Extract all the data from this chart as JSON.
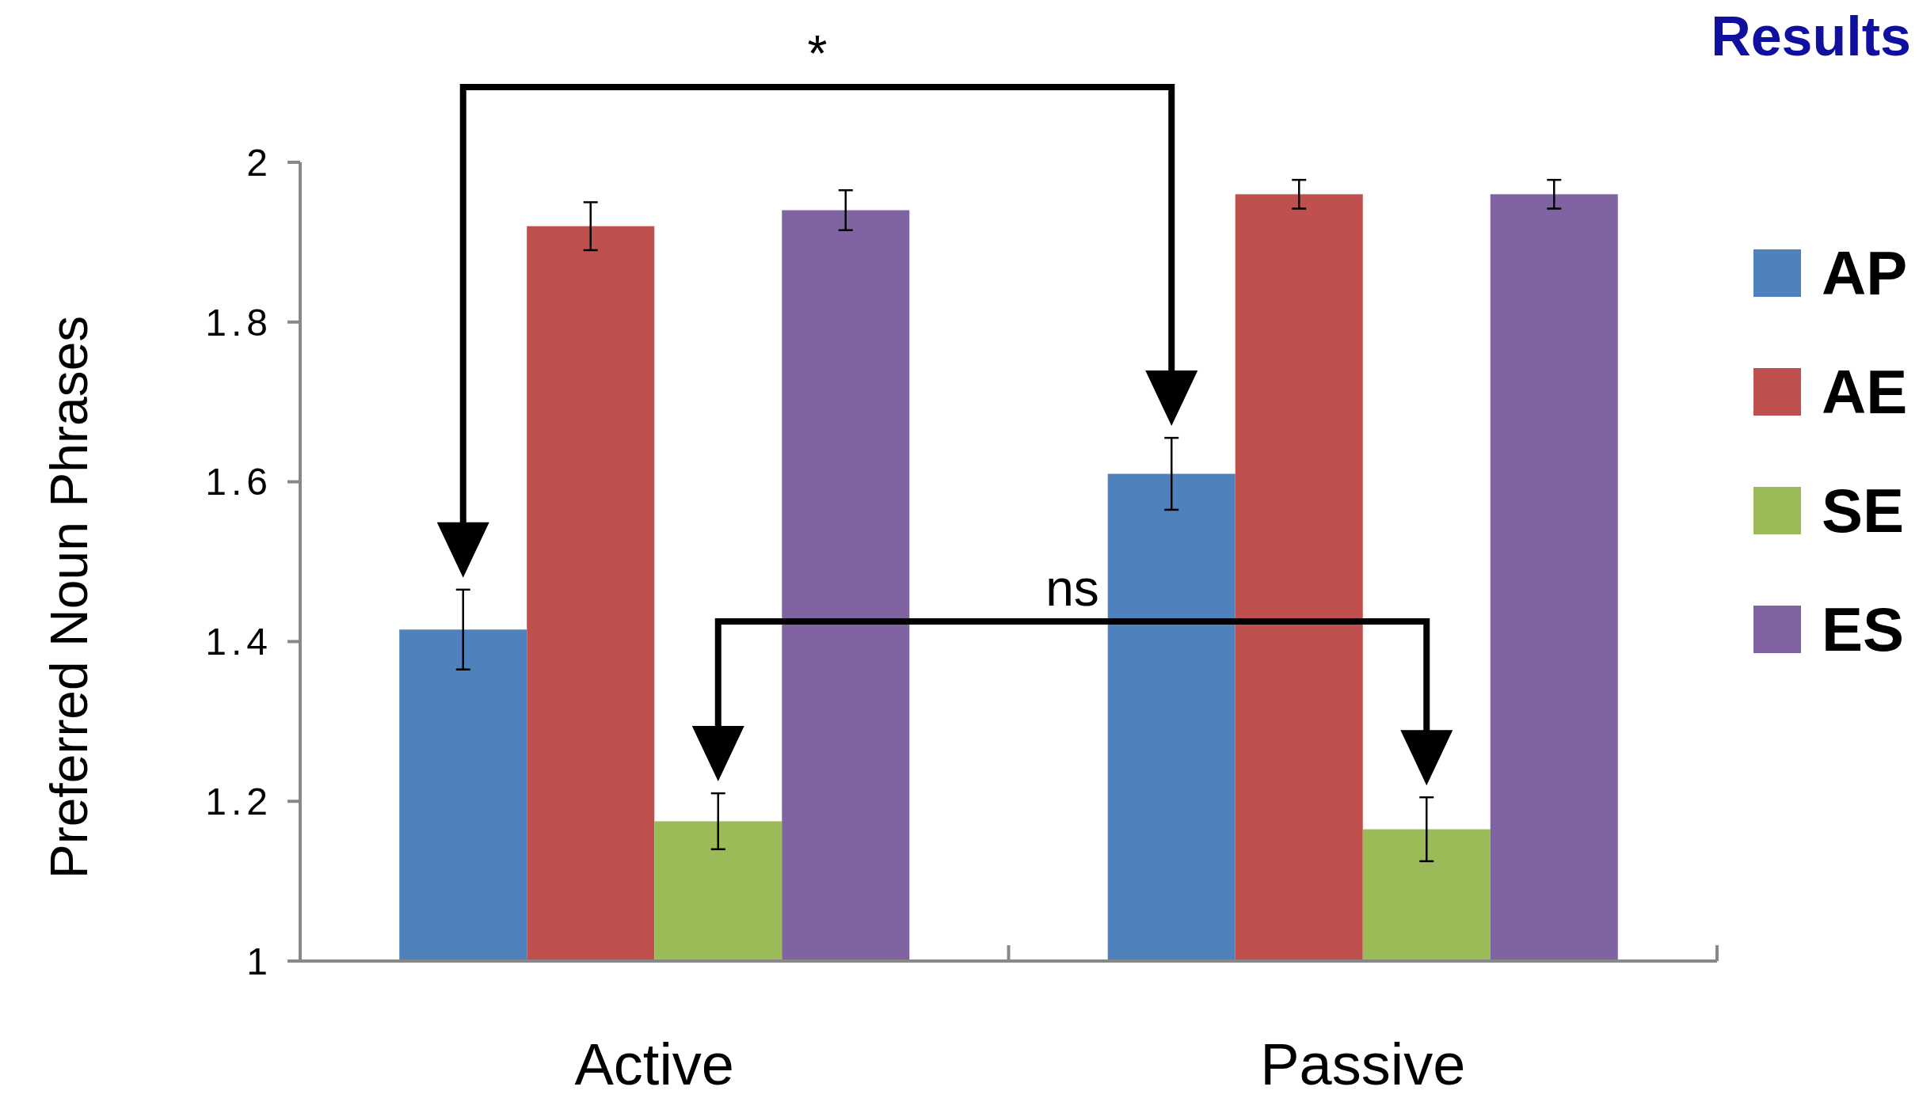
{
  "chart_data": {
    "type": "bar",
    "title": "Results",
    "ylabel": "Preferred Noun Phrases",
    "categories": [
      "Active",
      "Passive"
    ],
    "series": [
      {
        "name": "AP",
        "color": "#4f81bd",
        "values": [
          1.415,
          1.61
        ],
        "errors": [
          0.05,
          0.045
        ]
      },
      {
        "name": "AE",
        "color": "#c0504d",
        "values": [
          1.92,
          1.96
        ],
        "errors": [
          0.03,
          0.018
        ]
      },
      {
        "name": "SE",
        "color": "#9bbb59",
        "values": [
          1.175,
          1.165
        ],
        "errors": [
          0.035,
          0.04
        ]
      },
      {
        "name": "ES",
        "color": "#8064a2",
        "values": [
          1.94,
          1.96
        ],
        "errors": [
          0.025,
          0.018
        ]
      }
    ],
    "ylim": [
      1,
      2
    ],
    "yticks": [
      1,
      1.2,
      1.4,
      1.6,
      1.8,
      2
    ],
    "grid": false,
    "legend": "right",
    "annotations": [
      "*",
      "ns"
    ]
  }
}
